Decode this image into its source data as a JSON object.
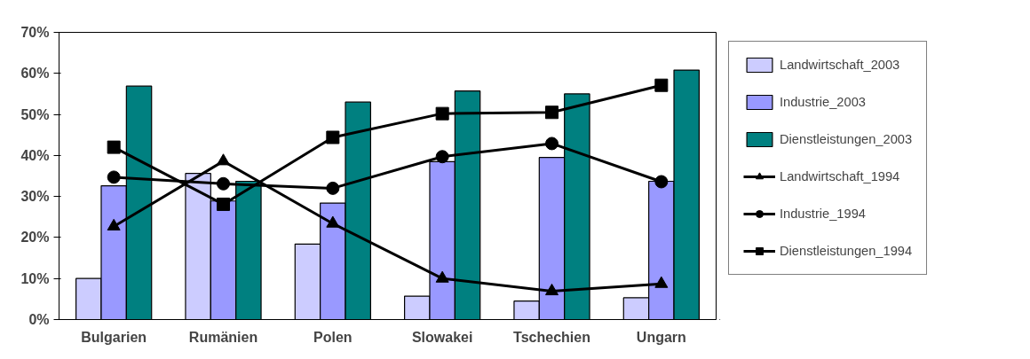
{
  "chart_data": {
    "type": "bar",
    "categories": [
      "Bulgarien",
      "Rumänien",
      "Polen",
      "Slowakei",
      "Tschechien",
      "Ungarn"
    ],
    "series": [
      {
        "name": "Landwirtschaft_2003",
        "color": "#ccccff",
        "values": [
          10.0,
          35.6,
          18.4,
          5.7,
          4.5,
          5.3
        ]
      },
      {
        "name": "Industrie_2003",
        "color": "#9999ff",
        "values": [
          32.6,
          28.9,
          28.4,
          38.5,
          39.5,
          33.7
        ]
      },
      {
        "name": "Dienstleistungen_2003",
        "color": "#008080",
        "values": [
          56.9,
          33.7,
          53.0,
          55.7,
          55.0,
          60.8
        ]
      },
      {
        "name": "Landwirtschaft_1994",
        "type": "line",
        "color": "#000000",
        "marker": "triangle",
        "values": [
          22.7,
          38.6,
          23.4,
          10.0,
          6.9,
          8.7
        ]
      },
      {
        "name": "Industrie_1994",
        "type": "line",
        "color": "#000000",
        "marker": "circle",
        "values": [
          34.7,
          33.1,
          32.0,
          39.7,
          42.9,
          33.6
        ]
      },
      {
        "name": "Dienstleistungen_1994",
        "type": "line",
        "color": "#000000",
        "marker": "square",
        "values": [
          42.0,
          28.1,
          44.4,
          50.2,
          50.5,
          57.1
        ]
      }
    ],
    "ylim": [
      0,
      70
    ],
    "yticks": [
      {
        "value": 0,
        "label": "0%"
      },
      {
        "value": 10,
        "label": "10%"
      },
      {
        "value": 20,
        "label": "20%"
      },
      {
        "value": 30,
        "label": "30%"
      },
      {
        "value": 40,
        "label": "40%"
      },
      {
        "value": 50,
        "label": "50%"
      },
      {
        "value": 60,
        "label": "60%"
      },
      {
        "value": 70,
        "label": "70%"
      }
    ],
    "grid": false,
    "legend": "right"
  }
}
